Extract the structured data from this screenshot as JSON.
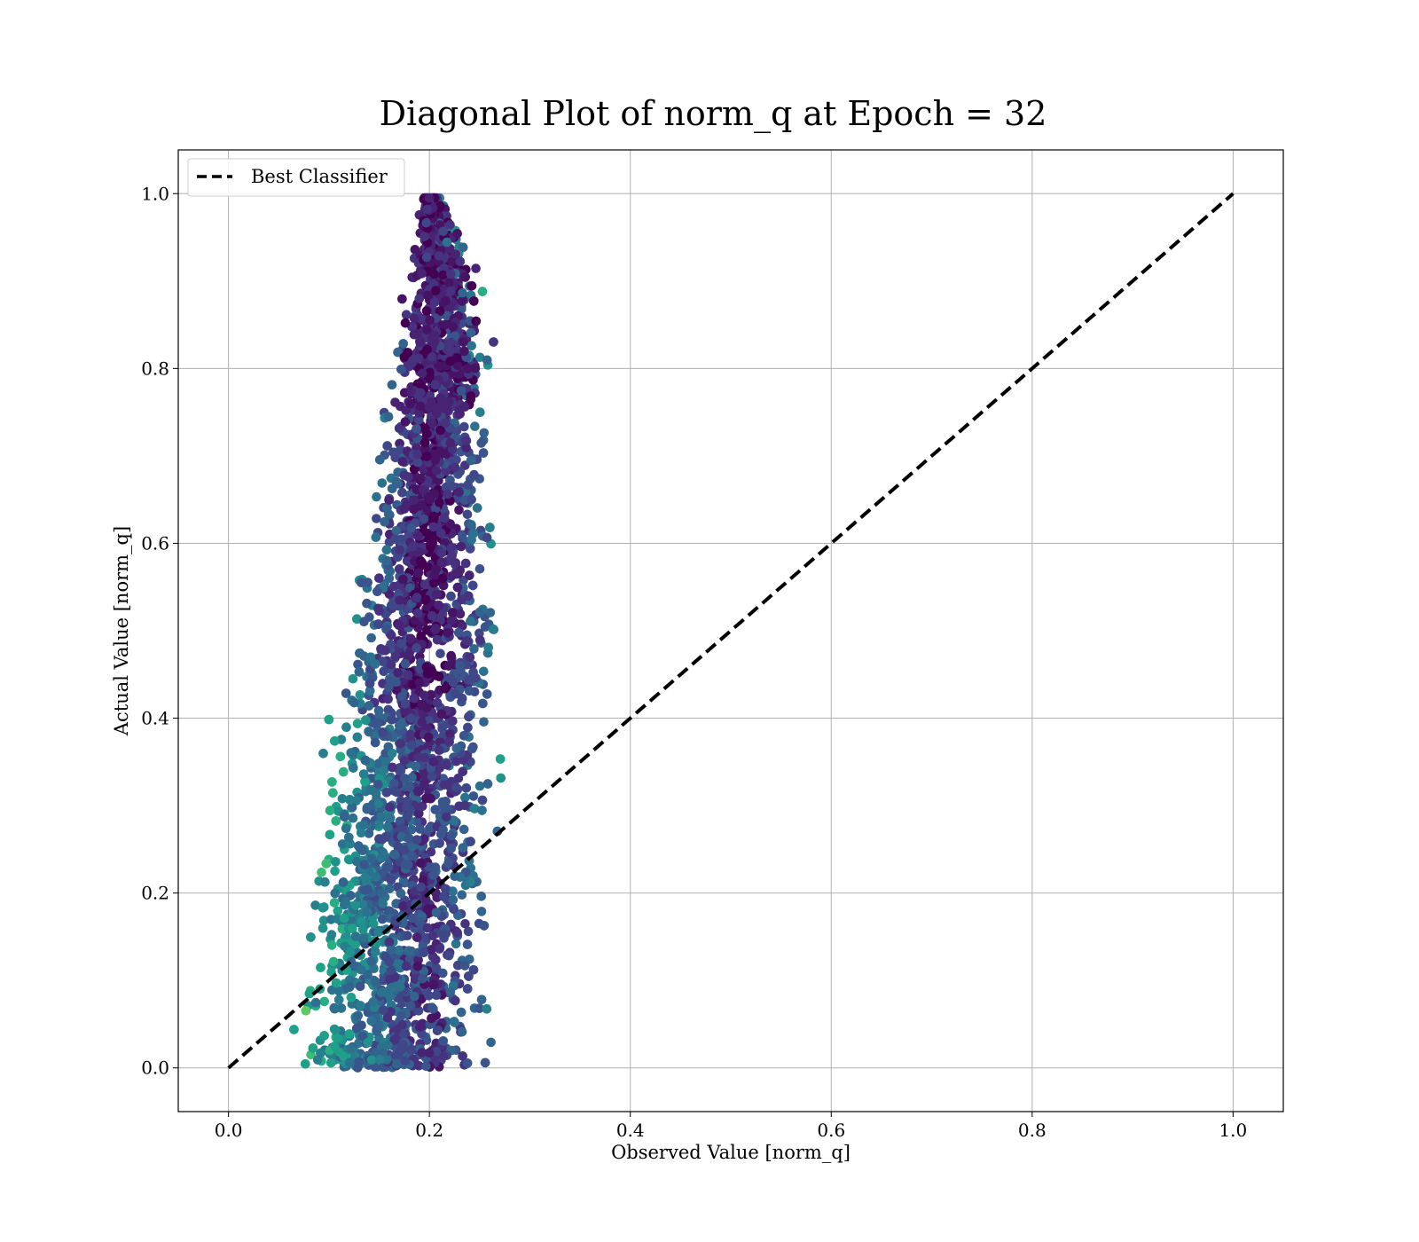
{
  "chart_data": {
    "type": "scatter",
    "title": "Diagonal Plot of norm_q at Epoch = 32",
    "xlabel": "Observed Value [norm_q]",
    "ylabel": "Actual Value [norm_q]",
    "xlim": [
      -0.05,
      1.05
    ],
    "ylim": [
      -0.05,
      1.05
    ],
    "xticks": [
      "0.0",
      "0.2",
      "0.4",
      "0.6",
      "0.8",
      "1.0"
    ],
    "yticks": [
      "0.0",
      "0.2",
      "0.4",
      "0.6",
      "0.8",
      "1.0"
    ],
    "grid": true,
    "legend": {
      "placement": "top-left",
      "entries": [
        "Best Classifier"
      ]
    },
    "colormap": "viridis",
    "series": [
      {
        "name": "Best Classifier",
        "kind": "line",
        "style": "dashed",
        "color": "#000000",
        "x": [
          0.0,
          1.0
        ],
        "y": [
          0.0,
          1.0
        ]
      }
    ],
    "scatter_envelope": {
      "description_points": "dense point cloud, x spread narrows as y increases",
      "y": [
        0.0,
        0.1,
        0.2,
        0.3,
        0.4,
        0.5,
        0.6,
        0.7,
        0.8,
        0.9,
        1.0
      ],
      "x_min": [
        0.04,
        0.05,
        0.06,
        0.075,
        0.09,
        0.105,
        0.12,
        0.135,
        0.15,
        0.17,
        0.19
      ],
      "x_max": [
        0.27,
        0.28,
        0.285,
        0.28,
        0.285,
        0.285,
        0.28,
        0.275,
        0.27,
        0.26,
        0.21
      ],
      "x_center": 0.2
    }
  }
}
